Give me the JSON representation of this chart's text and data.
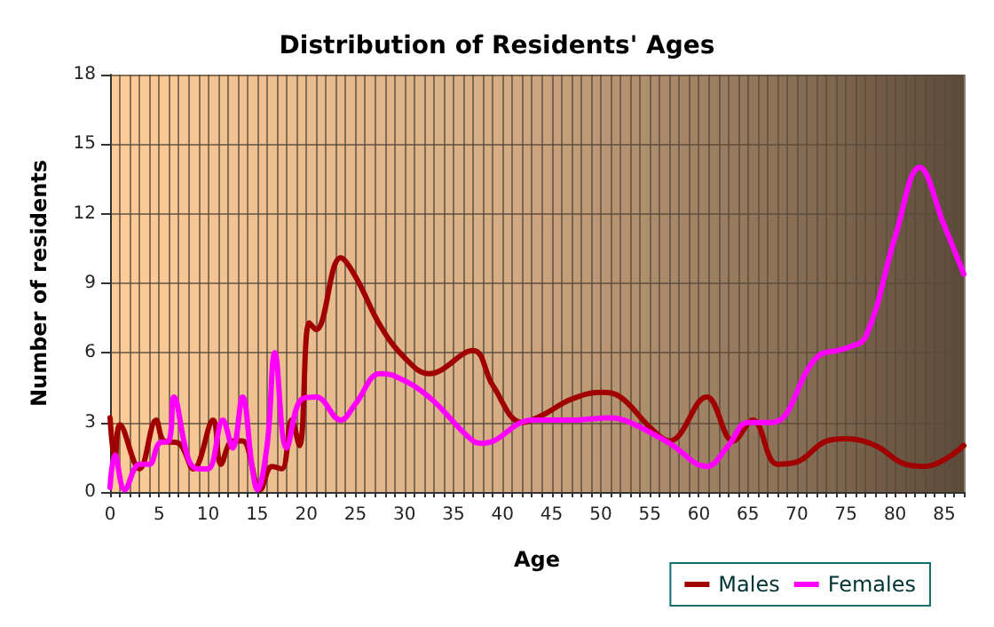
{
  "chart_data": {
    "type": "line",
    "title": "Distribution of Residents' Ages",
    "xlabel": "Age",
    "ylabel": "Number of residents",
    "xlim": [
      0,
      87
    ],
    "xticks": [
      0,
      5,
      10,
      15,
      20,
      25,
      30,
      35,
      40,
      45,
      50,
      55,
      60,
      65,
      70,
      75,
      80,
      85
    ],
    "ylim": [
      0,
      18
    ],
    "yticks": [
      0,
      3,
      6,
      9,
      12,
      15,
      18
    ],
    "grid": true,
    "legend": "bottom right",
    "marker": "none",
    "line_style": "solid",
    "series": [
      {
        "name": "Males",
        "color": "#a00000",
        "x": [
          0,
          0.5,
          1,
          3,
          4.7,
          5.5,
          7,
          8.5,
          10.5,
          11.3,
          12.5,
          13.5,
          15.3,
          16.5,
          17.5,
          18.5,
          19.3,
          20.3,
          21,
          23.5,
          25,
          27.5,
          30,
          32.5,
          37,
          39,
          42,
          44,
          47,
          50,
          52,
          55,
          57,
          60.8,
          63.5,
          65.5,
          68,
          70,
          73,
          75,
          78,
          81,
          83,
          87
        ],
        "values": [
          3.2,
          1.3,
          2.9,
          1.0,
          3.1,
          2.2,
          2.1,
          1.0,
          3.1,
          1.2,
          2.2,
          2.2,
          0.1,
          1.1,
          1.0,
          3.1,
          2.0,
          7.3,
          7.0,
          10.1,
          9.3,
          7.2,
          5.8,
          5.1,
          6.1,
          4.6,
          3.0,
          3.3,
          4.0,
          4.3,
          4.1,
          2.8,
          2.2,
          4.1,
          2.2,
          3.1,
          1.2,
          1.3,
          2.2,
          2.3,
          2.0,
          1.2,
          1.1,
          2.0
        ]
      },
      {
        "name": "Females",
        "color": "#ff00ff",
        "x": [
          0,
          0.5,
          1.5,
          3,
          4,
          5,
          6,
          6.5,
          8,
          9,
          10,
          11.5,
          12.5,
          13.5,
          14.5,
          15,
          16,
          16.8,
          18,
          19.5,
          21,
          23.5,
          25,
          27.5,
          29,
          32.5,
          37,
          38,
          43,
          47,
          51,
          53,
          57,
          60.8,
          63,
          65,
          67.5,
          72,
          75,
          77,
          80,
          82.5,
          85,
          87
        ],
        "values": [
          0.2,
          1.6,
          0.1,
          1.2,
          1.2,
          2.1,
          2.2,
          4.1,
          1.4,
          1.0,
          1.0,
          3.1,
          1.9,
          4.1,
          1.0,
          0.1,
          2.0,
          6.0,
          1.9,
          4.0,
          4.1,
          3.1,
          3.8,
          5.1,
          5.0,
          4.1,
          2.2,
          2.1,
          3.1,
          3.1,
          3.2,
          3.0,
          2.1,
          1.1,
          2.0,
          3.0,
          3.0,
          5.8,
          6.2,
          6.7,
          11.0,
          14.0,
          11.5,
          9.4
        ]
      }
    ]
  }
}
